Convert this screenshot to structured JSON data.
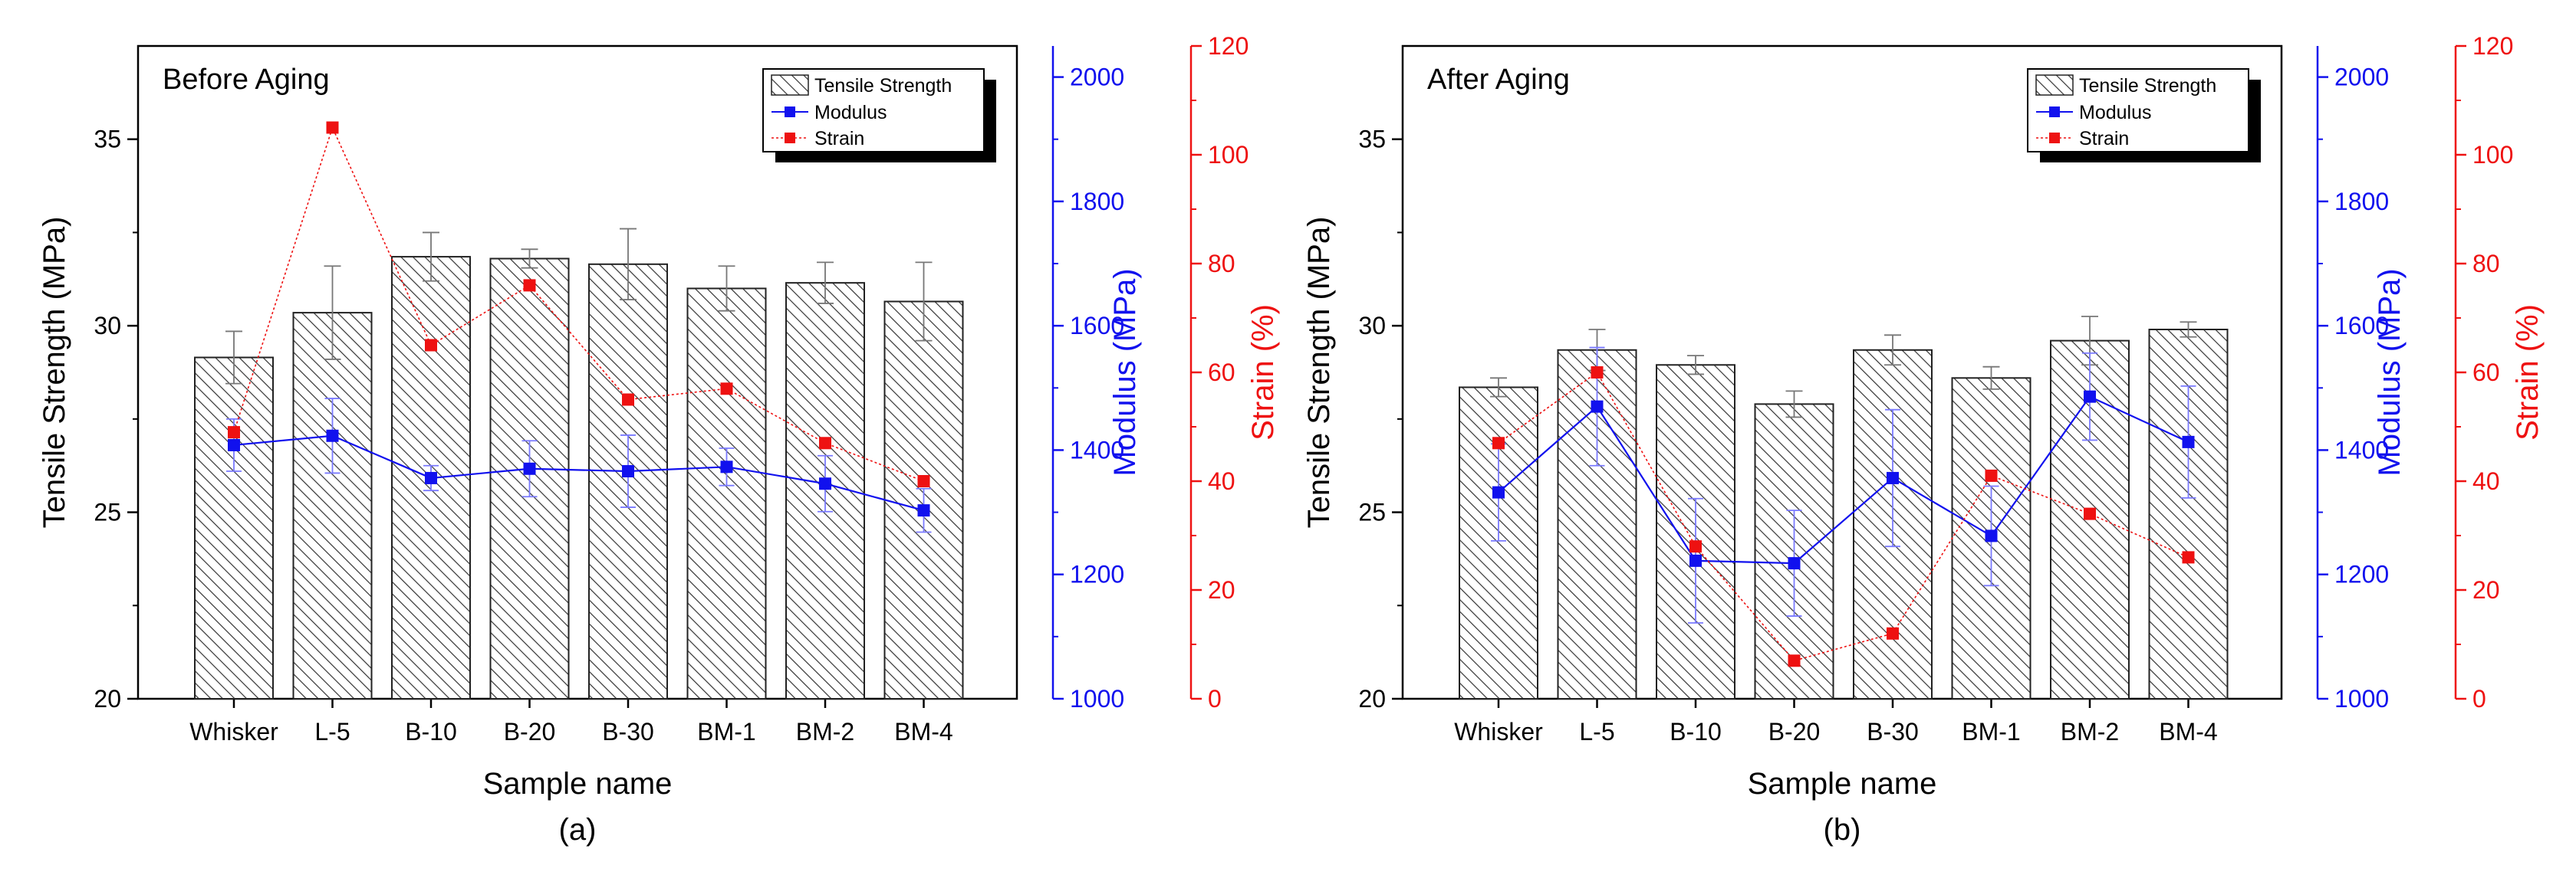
{
  "colors": {
    "bar_fill": "#ffffff",
    "bar_stroke": "#222222",
    "hatch": "#333333",
    "modulus": "#1111ee",
    "strain": "#ee1111",
    "axis": "#000000"
  },
  "icons": {
    "modulus_marker": "blue-square-marker-icon",
    "strain_marker": "red-square-marker-icon",
    "bar_pattern": "diagonal-hatch-icon"
  },
  "chart_data": [
    {
      "type": "bar",
      "id": "before",
      "title": "Before Aging",
      "caption": "(a)",
      "xlabel": "Sample name",
      "ylabel": "Tensile Strength (MPa)",
      "y2label": "Modulus (MPa)",
      "y3label": "Strain (%)",
      "categories": [
        "Whisker",
        "L-5",
        "B-10",
        "B-20",
        "B-30",
        "BM-1",
        "BM-2",
        "BM-4"
      ],
      "ylim": [
        20,
        37.5
      ],
      "yticks": [
        20,
        25,
        30,
        35
      ],
      "y2lim": [
        1000,
        2050
      ],
      "y2ticks": [
        1000,
        1200,
        1400,
        1600,
        1800,
        2000
      ],
      "y3lim": [
        0,
        120
      ],
      "y3ticks": [
        0,
        20,
        40,
        60,
        80,
        100,
        120
      ],
      "legend": {
        "position": "top-right",
        "entries": [
          "Tensile Strength",
          "Modulus",
          "Strain"
        ]
      },
      "series": [
        {
          "name": "Tensile Strength",
          "kind": "bar",
          "axis": "left",
          "values": [
            29.15,
            30.35,
            31.85,
            31.8,
            31.65,
            31.0,
            31.15,
            30.65
          ],
          "errors": [
            0.7,
            1.25,
            0.65,
            0.25,
            0.95,
            0.6,
            0.55,
            1.05
          ]
        },
        {
          "name": "Modulus",
          "kind": "line",
          "axis": "middle",
          "values": [
            1408,
            1423,
            1355,
            1370,
            1366,
            1373,
            1346,
            1303
          ],
          "errors": [
            42,
            60,
            20,
            45,
            58,
            30,
            45,
            35
          ]
        },
        {
          "name": "Strain",
          "kind": "line",
          "axis": "right",
          "values": [
            49,
            105,
            65,
            76,
            55,
            57,
            47,
            40
          ]
        }
      ]
    },
    {
      "type": "bar",
      "id": "after",
      "title": "After Aging",
      "caption": "(b)",
      "xlabel": "Sample name",
      "ylabel": "Tensile Strength (MPa)",
      "y2label": "Modulus (MPa)",
      "y3label": "Strain (%)",
      "categories": [
        "Whisker",
        "L-5",
        "B-10",
        "B-20",
        "B-30",
        "BM-1",
        "BM-2",
        "BM-4"
      ],
      "ylim": [
        20,
        37.5
      ],
      "yticks": [
        20,
        25,
        30,
        35
      ],
      "y2lim": [
        1000,
        2050
      ],
      "y2ticks": [
        1000,
        1200,
        1400,
        1600,
        1800,
        2000
      ],
      "y3lim": [
        0,
        120
      ],
      "y3ticks": [
        0,
        20,
        40,
        60,
        80,
        100,
        120
      ],
      "legend": {
        "position": "top-right",
        "entries": [
          "Tensile Strength",
          "Modulus",
          "Strain"
        ]
      },
      "series": [
        {
          "name": "Tensile Strength",
          "kind": "bar",
          "axis": "left",
          "values": [
            28.35,
            29.35,
            28.95,
            27.9,
            29.35,
            28.6,
            29.6,
            29.9
          ],
          "errors": [
            0.25,
            0.55,
            0.25,
            0.35,
            0.4,
            0.3,
            0.65,
            0.2
          ]
        },
        {
          "name": "Modulus",
          "kind": "line",
          "axis": "middle",
          "values": [
            1332,
            1470,
            1222,
            1218,
            1355,
            1262,
            1486,
            1413
          ],
          "errors": [
            78,
            95,
            100,
            85,
            110,
            80,
            70,
            90
          ]
        },
        {
          "name": "Strain",
          "kind": "line",
          "axis": "right",
          "values": [
            47,
            60,
            28,
            7,
            12,
            41,
            34,
            26
          ]
        }
      ]
    }
  ]
}
